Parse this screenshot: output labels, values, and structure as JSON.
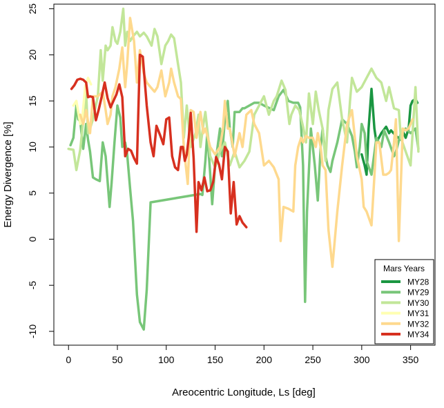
{
  "chart_data": {
    "type": "line",
    "title": "",
    "xlabel": "Areocentric Longitude, Ls [deg]",
    "ylabel": "Energy Divergence [%]",
    "xlim": [
      -15,
      375
    ],
    "ylim": [
      -11.5,
      25.5
    ],
    "xticks": [
      0,
      50,
      100,
      150,
      200,
      250,
      300,
      350
    ],
    "yticks": [
      -10,
      -5,
      0,
      5,
      10,
      15,
      20,
      25
    ],
    "grid": false,
    "legend": {
      "title": "Mars Years",
      "position": "bottom-right"
    },
    "series": [
      {
        "name": "MY28",
        "color": "#1a9641",
        "x": [
          300,
          303,
          305,
          307,
          310,
          313,
          315,
          320,
          325,
          328,
          330,
          335,
          340,
          343,
          345,
          348,
          350,
          352,
          355,
          357
        ],
        "y": [
          9.2,
          8.0,
          7.0,
          12.0,
          16.3,
          12.0,
          10.5,
          11.5,
          12.2,
          11.5,
          11.8,
          11.2,
          10.8,
          11.5,
          11.0,
          12.0,
          14.5,
          15.0,
          15.2,
          14.8
        ]
      },
      {
        "name": "MY29",
        "color": "#78c679",
        "x": [
          2,
          5,
          8,
          10,
          12,
          15,
          18,
          20,
          22,
          25,
          28,
          32,
          35,
          38,
          42,
          44,
          47,
          50,
          53,
          55,
          58,
          60,
          63,
          66,
          70,
          73,
          77,
          80,
          84,
          135,
          137,
          140,
          142,
          145,
          147,
          150,
          155,
          157,
          160,
          163,
          165,
          168,
          170,
          175,
          178,
          180,
          185,
          190,
          195,
          200,
          210,
          215,
          220,
          225,
          230,
          235,
          237,
          240,
          242,
          244,
          248,
          252,
          255,
          258,
          260,
          263,
          265,
          268,
          270,
          275,
          280,
          285,
          290,
          293,
          295,
          298,
          300,
          303,
          305,
          310,
          315,
          320,
          323,
          328,
          333,
          335,
          340,
          345,
          350,
          355,
          358
        ],
        "y": [
          10.2,
          11.0,
          14.5,
          13.0,
          12.8,
          9.8,
          12.5,
          10.8,
          9.5,
          6.7,
          6.5,
          6.3,
          10.5,
          9.0,
          3.5,
          6.0,
          10.5,
          14.5,
          13.2,
          10.0,
          10.5,
          9.2,
          5.5,
          2.0,
          -6.0,
          -9.0,
          -9.8,
          -5.5,
          4.0,
          4.9,
          4.8,
          8.5,
          11.5,
          7.0,
          3.8,
          8.0,
          12.0,
          9.0,
          13.0,
          15.0,
          12.0,
          10.0,
          13.8,
          13.8,
          14.2,
          14.2,
          14.5,
          14.8,
          14.8,
          14.5,
          14.0,
          15.5,
          16.2,
          15.0,
          14.8,
          14.8,
          14.3,
          8.0,
          -6.8,
          3.0,
          12.0,
          8.0,
          4.2,
          10.0,
          12.0,
          9.0,
          8.0,
          7.3,
          8.5,
          10.5,
          13.0,
          12.5,
          11.2,
          9.5,
          7.8,
          10.0,
          12.5,
          11.5,
          8.5,
          7.0,
          11.0,
          10.0,
          11.8,
          10.5,
          9.0,
          9.5,
          11.5,
          12.0,
          11.5,
          12.0,
          9.8
        ]
      },
      {
        "name": "MY30",
        "color": "#c2e699",
        "x": [
          0,
          5,
          8,
          12,
          18,
          20,
          22,
          25,
          30,
          33,
          35,
          38,
          40,
          43,
          45,
          48,
          50,
          53,
          56,
          58,
          60,
          63,
          66,
          70,
          73,
          77,
          80,
          85,
          88,
          91,
          95,
          99,
          102,
          105,
          108,
          112,
          115,
          118,
          121,
          125,
          130,
          133,
          135,
          138,
          140,
          145,
          150,
          155,
          160,
          165,
          170,
          175,
          180,
          185,
          190,
          195,
          200,
          205,
          210,
          213,
          218,
          222,
          226,
          228,
          232,
          236,
          240,
          243,
          246,
          250,
          253,
          256,
          260,
          263,
          266,
          270,
          275,
          280,
          285,
          288,
          290,
          295,
          300,
          305,
          310,
          315,
          320,
          325,
          328,
          333,
          338,
          340,
          345,
          350,
          355,
          358
        ],
        "y": [
          9.8,
          9.7,
          7.5,
          9.7,
          16.0,
          11.5,
          12.0,
          13.0,
          15.5,
          20.5,
          17.2,
          21.0,
          20.5,
          21.0,
          23.0,
          21.5,
          21.2,
          22.5,
          25.0,
          21.0,
          22.5,
          21.5,
          22.0,
          22.5,
          22.0,
          22.4,
          22.0,
          21.0,
          22.8,
          22.0,
          19.0,
          21.0,
          21.5,
          22.2,
          21.8,
          19.0,
          17.0,
          11.0,
          14.5,
          10.0,
          11.5,
          13.5,
          10.0,
          12.5,
          13.8,
          9.0,
          7.8,
          9.5,
          10.5,
          8.0,
          9.5,
          7.8,
          8.5,
          9.5,
          13.5,
          14.5,
          15.5,
          13.5,
          15.0,
          15.5,
          17.2,
          16.2,
          12.5,
          13.5,
          14.5,
          14.0,
          12.2,
          10.5,
          15.8,
          12.5,
          16.0,
          14.0,
          12.0,
          8.5,
          14.0,
          16.3,
          17.0,
          13.0,
          10.5,
          15.0,
          17.5,
          16.0,
          16.5,
          17.5,
          18.5,
          17.5,
          17.0,
          15.0,
          16.5,
          14.2,
          14.0,
          11.0,
          9.5,
          8.0,
          16.5,
          9.5
        ]
      },
      {
        "name": "MY31",
        "color": "#ffffb2",
        "x": [
          5,
          8,
          12,
          14,
          17,
          20,
          23
        ],
        "y": [
          14.5,
          15.0,
          12.5,
          13.0,
          16.5,
          17.5,
          16.8
        ]
      },
      {
        "name": "MY32",
        "color": "#fed98e",
        "x": [
          12,
          15,
          18,
          22,
          25,
          30,
          35,
          38,
          40,
          43,
          45,
          48,
          52,
          55,
          58,
          60,
          63,
          67,
          70,
          73,
          77,
          80,
          84,
          88,
          91,
          95,
          99,
          103,
          105,
          108,
          112,
          115,
          118,
          122,
          125,
          128,
          131,
          135,
          138,
          140,
          145,
          150,
          155,
          158,
          160,
          163,
          165,
          170,
          175,
          178,
          182,
          187,
          190,
          195,
          200,
          205,
          210,
          215,
          217,
          220,
          225,
          230,
          232,
          235,
          238,
          240,
          243,
          246,
          250,
          253,
          255,
          258,
          260,
          263,
          266,
          270,
          275,
          280,
          285,
          290,
          295,
          300,
          302,
          305,
          310,
          315,
          318,
          322,
          325,
          328,
          330,
          333,
          335,
          338,
          342,
          345,
          348,
          352
        ],
        "y": [
          13.5,
          12.5,
          14.0,
          11.5,
          15.5,
          15.5,
          16.0,
          14.0,
          12.5,
          13.5,
          15.5,
          16.5,
          18.5,
          20.8,
          16.5,
          19.0,
          24.0,
          21.5,
          17.0,
          20.5,
          18.0,
          17.0,
          16.5,
          16.0,
          16.5,
          18.3,
          15.5,
          17.0,
          18.5,
          17.0,
          15.5,
          15.2,
          10.0,
          6.0,
          14.0,
          13.8,
          11.0,
          13.8,
          11.5,
          12.0,
          10.0,
          9.2,
          10.0,
          12.0,
          15.0,
          12.0,
          12.0,
          9.0,
          11.5,
          10.0,
          13.5,
          14.0,
          12.5,
          11.5,
          8.0,
          8.5,
          7.8,
          6.5,
          -0.2,
          3.5,
          3.3,
          3.0,
          8.0,
          10.0,
          11.0,
          10.5,
          11.2,
          11.0,
          11.0,
          10.0,
          11.5,
          10.0,
          8.0,
          7.5,
          1.0,
          -3.0,
          3.0,
          8.0,
          12.5,
          14.0,
          9.0,
          6.5,
          3.5,
          3.0,
          1.5,
          10.5,
          10.5,
          7.0,
          7.0,
          7.2,
          7.5,
          10.5,
          13.0,
          -0.2,
          12.0,
          11.8,
          12.0,
          13.0
        ]
      },
      {
        "name": "MY34",
        "color": "#d7301f",
        "x": [
          3,
          6,
          9,
          12,
          15,
          18,
          20,
          22,
          25,
          28,
          31,
          34,
          37,
          40,
          43,
          46,
          49,
          52,
          55,
          58,
          61,
          64,
          67,
          70,
          73,
          76,
          80,
          84,
          87,
          90,
          94,
          97,
          100,
          103,
          106,
          109,
          112,
          115,
          117,
          119,
          121,
          123,
          125,
          128,
          131,
          133,
          136,
          139,
          142,
          145,
          148,
          151,
          154,
          157,
          160,
          163,
          166,
          169,
          172,
          175,
          178,
          182
        ],
        "y": [
          16.3,
          16.7,
          17.3,
          17.4,
          17.3,
          17.0,
          15.4,
          15.5,
          15.4,
          12.9,
          14.1,
          15.5,
          17.0,
          15.3,
          14.3,
          15.0,
          15.7,
          16.8,
          15.4,
          9.0,
          9.8,
          9.6,
          8.8,
          8.2,
          20.0,
          19.8,
          14.5,
          10.5,
          9.0,
          12.3,
          11.2,
          10.3,
          13.0,
          13.2,
          9.0,
          7.8,
          7.5,
          10.0,
          10.0,
          8.5,
          9.2,
          11.0,
          13.7,
          8.8,
          0.8,
          6.2,
          5.3,
          6.7,
          5.2,
          5.3,
          6.2,
          8.9,
          8.1,
          6.5,
          10.0,
          9.5,
          2.8,
          6.2,
          1.6,
          2.5,
          1.8,
          1.3
        ]
      }
    ]
  }
}
